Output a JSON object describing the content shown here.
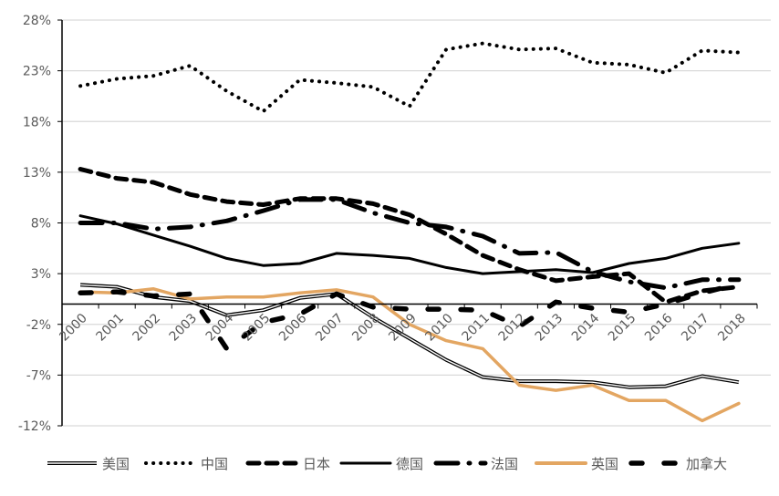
{
  "chart_data": {
    "type": "line",
    "title": "",
    "xlabel": "",
    "ylabel": "",
    "ylim": [
      -12,
      28
    ],
    "yticks": [
      "28%",
      "23%",
      "18%",
      "13%",
      "8%",
      "3%",
      "-2%",
      "-7%",
      "-12%"
    ],
    "ytick_values": [
      28,
      23,
      18,
      13,
      8,
      3,
      -2,
      -7,
      -12
    ],
    "grid": true,
    "legend_position": "bottom",
    "categories": [
      "2000",
      "2001",
      "2002",
      "2003",
      "2004",
      "2005",
      "2006",
      "2007",
      "2008",
      "2009",
      "2010",
      "2011",
      "2012",
      "2013",
      "2014",
      "2015",
      "2016",
      "2017",
      "2018"
    ],
    "series": [
      {
        "name": "美国",
        "style": "double",
        "color": "#000000",
        "values": [
          1.9,
          1.7,
          0.7,
          0.3,
          -1.1,
          -0.6,
          0.6,
          1.0,
          -1.3,
          -3.4,
          -5.5,
          -7.2,
          -7.6,
          -7.6,
          -7.7,
          -8.2,
          -8.1,
          -7.1,
          -7.7
        ]
      },
      {
        "name": "中国",
        "style": "dotted",
        "color": "#000000",
        "values": [
          21.5,
          22.2,
          22.5,
          23.5,
          21.0,
          19.0,
          22.1,
          21.8,
          21.4,
          19.5,
          25.1,
          25.7,
          25.1,
          25.2,
          23.8,
          23.6,
          22.8,
          25.0,
          24.8
        ]
      },
      {
        "name": "日本",
        "style": "dashed",
        "color": "#000000",
        "values": [
          13.3,
          12.4,
          12.0,
          10.8,
          10.1,
          9.8,
          10.4,
          10.4,
          9.9,
          8.8,
          6.9,
          4.8,
          3.4,
          2.3,
          2.7,
          3.0,
          0.2,
          1.3,
          1.7
        ]
      },
      {
        "name": "德国",
        "style": "solid",
        "color": "#000000",
        "values": [
          8.7,
          7.9,
          6.8,
          5.7,
          4.5,
          3.8,
          4.0,
          5.0,
          4.8,
          4.5,
          3.6,
          3.0,
          3.2,
          3.4,
          3.1,
          4.0,
          4.5,
          5.5,
          6.0
        ]
      },
      {
        "name": "法国",
        "style": "longdashdot",
        "color": "#000000",
        "values": [
          8.0,
          8.0,
          7.4,
          7.6,
          8.2,
          9.2,
          10.3,
          10.3,
          9.0,
          8.0,
          7.6,
          6.7,
          5.0,
          5.1,
          3.2,
          2.2,
          1.6,
          2.4,
          2.4
        ]
      },
      {
        "name": "英国",
        "style": "solid",
        "color": "#e3a662",
        "values": [
          1.2,
          1.1,
          1.5,
          0.5,
          0.7,
          0.7,
          1.1,
          1.4,
          0.7,
          -2.0,
          -3.6,
          -4.4,
          -8.0,
          -8.5,
          -8.0,
          -9.5,
          -9.5,
          -11.5,
          -9.8
        ]
      },
      {
        "name": "加拿大",
        "style": "gapdash",
        "color": "#000000",
        "values": [
          1.1,
          1.2,
          0.8,
          1.0,
          -4.4,
          -1.8,
          -1.0,
          1.0,
          -0.3,
          -0.5,
          -0.5,
          -0.6,
          -2.2,
          0.2,
          -0.4,
          -0.8,
          0.0,
          1.1,
          2.0
        ]
      }
    ]
  }
}
